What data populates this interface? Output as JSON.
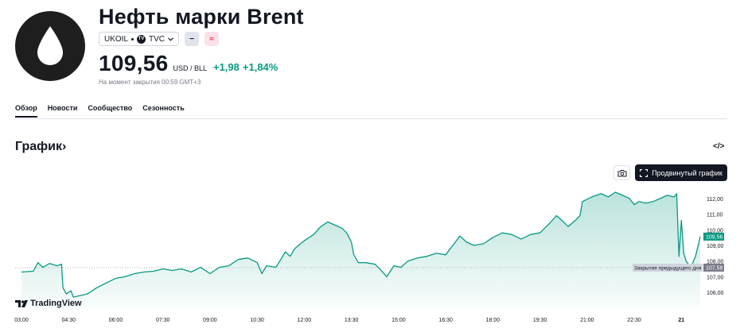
{
  "header": {
    "title": "Нефть марки Brent",
    "symbol": "UKOIL",
    "exchange": "TVC",
    "badge_minus": "−",
    "badge_approx": "≈",
    "price": "109,56",
    "currency": "USD / BLL",
    "change_abs": "+1,98",
    "change_pct": "+1,84%",
    "closing_note": "На момент закрытия 00:59 GMT+3"
  },
  "tabs": [
    {
      "label": "Обзор",
      "active": true
    },
    {
      "label": "Новости",
      "active": false
    },
    {
      "label": "Сообщество",
      "active": false
    },
    {
      "label": "Сезонность",
      "active": false
    }
  ],
  "chart_section": {
    "title": "График",
    "title_chevron": "›",
    "embed_icon": "</>",
    "advanced_button": "Продвинутый график",
    "branding": "TradingView"
  },
  "chart_data": {
    "type": "area",
    "x_ticks": [
      "03:00",
      "04:30",
      "06:00",
      "07:30",
      "09:00",
      "10:30",
      "12:00",
      "13:30",
      "15:00",
      "16:30",
      "18:00",
      "19:30",
      "21:00",
      "22:30",
      "21"
    ],
    "y_ticks": [
      "112,00",
      "111,00",
      "110,00",
      "109,00",
      "108,00",
      "107,00",
      "106,00"
    ],
    "y_range": [
      105.5,
      112.5
    ],
    "x_range": [
      0,
      14.4
    ],
    "last_price_label": "109,56",
    "prev_close_label": "Закрытие предыдущего дня",
    "prev_close_value": "107,58",
    "prev_close": 107.58,
    "line_color": "#089981",
    "points": [
      [
        0,
        107.3
      ],
      [
        0.25,
        107.35
      ],
      [
        0.35,
        107.9
      ],
      [
        0.45,
        107.6
      ],
      [
        0.6,
        107.85
      ],
      [
        0.75,
        107.7
      ],
      [
        0.85,
        107.8
      ],
      [
        0.88,
        106.3
      ],
      [
        0.95,
        105.9
      ],
      [
        1.05,
        106.1
      ],
      [
        1.1,
        105.7
      ],
      [
        1.25,
        105.8
      ],
      [
        1.4,
        105.9
      ],
      [
        1.6,
        106.3
      ],
      [
        1.8,
        106.6
      ],
      [
        2.0,
        106.9
      ],
      [
        2.2,
        107.0
      ],
      [
        2.4,
        107.2
      ],
      [
        2.6,
        107.3
      ],
      [
        2.8,
        107.35
      ],
      [
        3.0,
        107.5
      ],
      [
        3.2,
        107.4
      ],
      [
        3.4,
        107.5
      ],
      [
        3.6,
        107.3
      ],
      [
        3.8,
        107.6
      ],
      [
        4.0,
        107.2
      ],
      [
        4.2,
        107.6
      ],
      [
        4.4,
        107.7
      ],
      [
        4.6,
        108.1
      ],
      [
        4.8,
        108.2
      ],
      [
        5.0,
        107.9
      ],
      [
        5.1,
        107.2
      ],
      [
        5.2,
        107.7
      ],
      [
        5.4,
        107.6
      ],
      [
        5.6,
        108.6
      ],
      [
        5.7,
        108.3
      ],
      [
        5.8,
        108.8
      ],
      [
        6.0,
        109.3
      ],
      [
        6.2,
        109.7
      ],
      [
        6.35,
        110.2
      ],
      [
        6.5,
        110.5
      ],
      [
        6.65,
        110.3
      ],
      [
        6.8,
        110.1
      ],
      [
        6.9,
        109.8
      ],
      [
        7.0,
        109.2
      ],
      [
        7.05,
        108.4
      ],
      [
        7.15,
        107.9
      ],
      [
        7.3,
        107.9
      ],
      [
        7.5,
        107.8
      ],
      [
        7.6,
        107.5
      ],
      [
        7.75,
        107.0
      ],
      [
        7.9,
        107.7
      ],
      [
        8.05,
        107.6
      ],
      [
        8.2,
        108.0
      ],
      [
        8.4,
        108.2
      ],
      [
        8.6,
        108.3
      ],
      [
        8.8,
        108.5
      ],
      [
        9.0,
        108.4
      ],
      [
        9.2,
        109.2
      ],
      [
        9.3,
        109.6
      ],
      [
        9.45,
        109.2
      ],
      [
        9.6,
        109.0
      ],
      [
        9.8,
        109.1
      ],
      [
        10.0,
        109.5
      ],
      [
        10.2,
        109.8
      ],
      [
        10.4,
        109.7
      ],
      [
        10.6,
        109.4
      ],
      [
        10.8,
        109.7
      ],
      [
        11.0,
        109.8
      ],
      [
        11.2,
        110.4
      ],
      [
        11.35,
        110.9
      ],
      [
        11.5,
        110.5
      ],
      [
        11.6,
        110.2
      ],
      [
        11.75,
        110.6
      ],
      [
        11.85,
        110.9
      ],
      [
        11.9,
        111.8
      ],
      [
        12.1,
        112.1
      ],
      [
        12.3,
        112.3
      ],
      [
        12.45,
        112.1
      ],
      [
        12.6,
        112.4
      ],
      [
        12.75,
        112.2
      ],
      [
        12.9,
        112.0
      ],
      [
        13.0,
        111.6
      ],
      [
        13.1,
        111.8
      ],
      [
        13.25,
        111.7
      ],
      [
        13.4,
        111.8
      ],
      [
        13.55,
        112.0
      ],
      [
        13.7,
        112.2
      ],
      [
        13.85,
        112.1
      ],
      [
        13.9,
        112.3
      ],
      [
        13.95,
        108.3
      ],
      [
        14.0,
        110.6
      ],
      [
        14.05,
        108.5
      ],
      [
        14.1,
        108.0
      ],
      [
        14.2,
        107.6
      ],
      [
        14.3,
        108.3
      ],
      [
        14.4,
        109.56
      ]
    ]
  }
}
